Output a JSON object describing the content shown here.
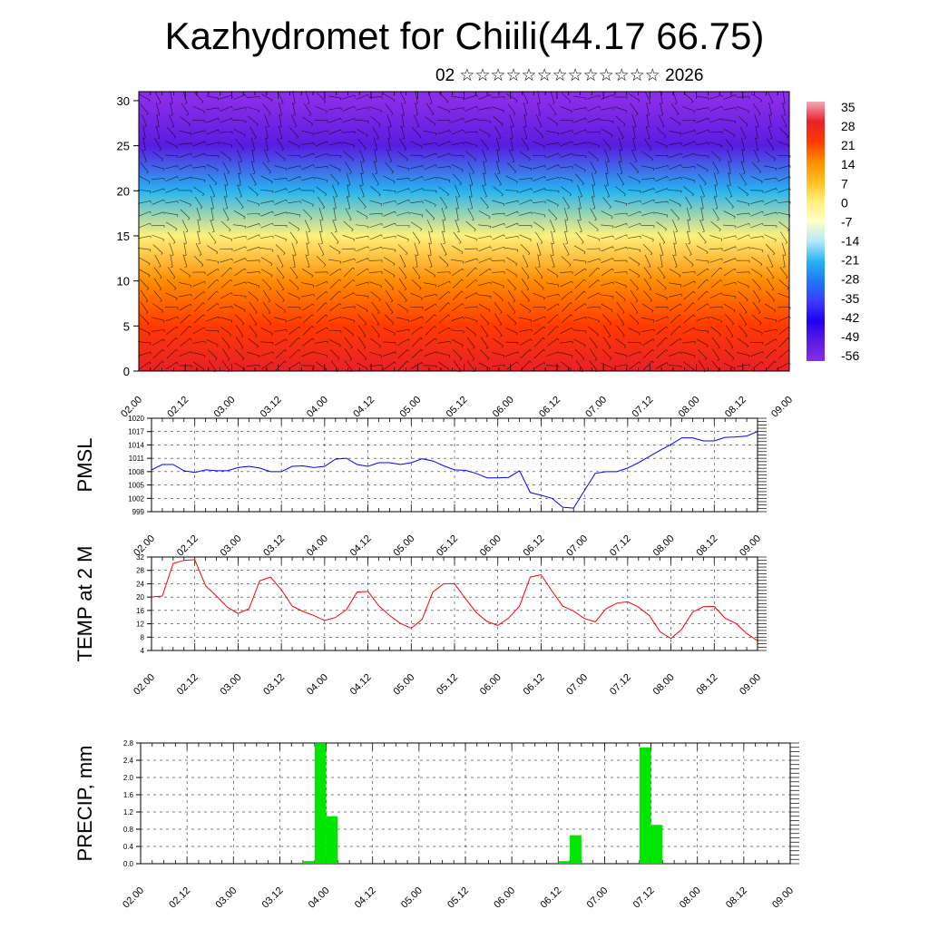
{
  "title": "Kazhydromet for Chiili(44.17 66.75)",
  "subtitle": "02 ☆☆☆☆☆☆☆☆☆☆☆☆☆ 2026",
  "x_ticks": [
    "02.00",
    "02.12",
    "03.00",
    "03.12",
    "04.00",
    "04.12",
    "05.00",
    "05.12",
    "06.00",
    "06.12",
    "07.00",
    "07.12",
    "08.00",
    "08.12",
    "09.00"
  ],
  "colors": {
    "pmsl_line": "#0000ff",
    "temp_line": "#ff0000",
    "precip_bar": "#00e600",
    "grid": "#000000"
  },
  "chart_data": [
    {
      "type": "heatmap",
      "name": "vertical cross-section",
      "xlabel": "",
      "ylabel": "",
      "ylim": [
        0,
        31
      ],
      "y_ticks": [
        0,
        5,
        10,
        15,
        20,
        25,
        30
      ],
      "colorbar": {
        "labels": [
          "35",
          "28",
          "21",
          "14",
          "7",
          "0",
          "-7",
          "-14",
          "-21",
          "-28",
          "-35",
          "-42",
          "-49",
          "-56"
        ],
        "stops": [
          "#f4a8b8",
          "#e8202a",
          "#ff3a00",
          "#ff8c00",
          "#ffc020",
          "#fff07a",
          "#ffffc8",
          "#b4e8f8",
          "#28b4f0",
          "#1e78f0",
          "#3c3cff",
          "#2000f0",
          "#5a1ce0",
          "#8a2ce8"
        ]
      },
      "temperature_profile": [
        {
          "height": 0,
          "value": 28
        },
        {
          "height": 5,
          "value": 20
        },
        {
          "height": 10,
          "value": 12
        },
        {
          "height": 15,
          "value": 0
        },
        {
          "height": 20,
          "value": -22
        },
        {
          "height": 25,
          "value": -52
        },
        {
          "height": 30,
          "value": -58
        }
      ]
    },
    {
      "type": "line",
      "ylabel": "PMSL",
      "ylim": [
        999,
        1020
      ],
      "y_ticks": [
        999,
        1002,
        1005,
        1008,
        1011,
        1014,
        1017,
        1020
      ],
      "x": [
        0,
        1,
        2,
        3,
        4,
        5,
        6,
        7,
        8,
        9,
        10,
        11,
        12,
        13,
        14,
        15,
        16,
        17,
        18,
        19,
        20,
        21,
        22,
        23,
        24,
        25,
        26,
        27,
        28,
        29,
        30,
        31,
        32,
        33,
        34,
        35,
        36,
        37,
        38,
        39,
        40,
        41,
        42,
        43,
        44,
        45,
        46,
        47,
        48,
        49,
        50,
        51,
        52,
        53,
        54,
        55,
        56
      ],
      "values": [
        1008.4,
        1009.6,
        1009.6,
        1008.2,
        1007.8,
        1008.4,
        1008.2,
        1008.2,
        1008.9,
        1009.2,
        1008.8,
        1008.0,
        1008.0,
        1009.2,
        1009.3,
        1008.9,
        1009.2,
        1010.8,
        1011.0,
        1009.6,
        1009.2,
        1010.0,
        1010.0,
        1009.6,
        1010.0,
        1010.9,
        1010.4,
        1009.3,
        1008.4,
        1008.3,
        1007.6,
        1006.6,
        1006.6,
        1006.7,
        1008.2,
        1003.3,
        1002.7,
        1002.0,
        1000.0,
        999.8,
        1003.7,
        1007.6,
        1008.0,
        1008.0,
        1008.8,
        1010.0,
        1011.4,
        1012.8,
        1014.1,
        1015.6,
        1015.6,
        1014.9,
        1014.9,
        1015.7,
        1015.8,
        1016.0,
        1017.0
      ]
    },
    {
      "type": "line",
      "ylabel": "TEMP at 2 M",
      "ylim": [
        4,
        32
      ],
      "y_ticks": [
        4,
        8,
        12,
        16,
        20,
        24,
        28,
        32
      ],
      "x": [
        0,
        1,
        2,
        3,
        4,
        5,
        6,
        7,
        8,
        9,
        10,
        11,
        12,
        13,
        14,
        15,
        16,
        17,
        18,
        19,
        20,
        21,
        22,
        23,
        24,
        25,
        26,
        27,
        28,
        29,
        30,
        31,
        32,
        33,
        34,
        35,
        36,
        37,
        38,
        39,
        40,
        41,
        42,
        43,
        44,
        45,
        46,
        47,
        48,
        49,
        50,
        51,
        52,
        53,
        54,
        55,
        56
      ],
      "values": [
        20.0,
        20.3,
        30.1,
        31.0,
        31.2,
        23.4,
        20.3,
        17.0,
        15.1,
        16.5,
        24.9,
        26.0,
        22.2,
        17.3,
        15.7,
        14.5,
        13.0,
        13.9,
        16.2,
        21.5,
        21.7,
        17.4,
        14.5,
        12.1,
        10.7,
        13.3,
        21.5,
        24.0,
        24.0,
        19.6,
        15.4,
        12.7,
        11.5,
        13.7,
        17.3,
        26.0,
        26.7,
        21.8,
        17.3,
        15.8,
        13.6,
        12.6,
        16.5,
        18.2,
        18.6,
        17.0,
        14.5,
        9.6,
        7.6,
        10.4,
        15.5,
        17.1,
        17.2,
        13.7,
        12.1,
        9.1,
        6.9
      ]
    },
    {
      "type": "bar",
      "ylabel": "PRECIP, mm",
      "ylim": [
        0,
        2.8
      ],
      "y_ticks": [
        "0.0",
        "0.4",
        "0.8",
        "1.2",
        "1.6",
        "2.0",
        "2.4",
        "2.8"
      ],
      "x": [
        14.5,
        15.5,
        16.5,
        36.5,
        37.5,
        38.5,
        43.5,
        44.5
      ],
      "values": [
        0.06,
        2.78,
        1.1,
        0.06,
        0.66,
        0.02,
        2.7,
        0.9
      ]
    }
  ]
}
